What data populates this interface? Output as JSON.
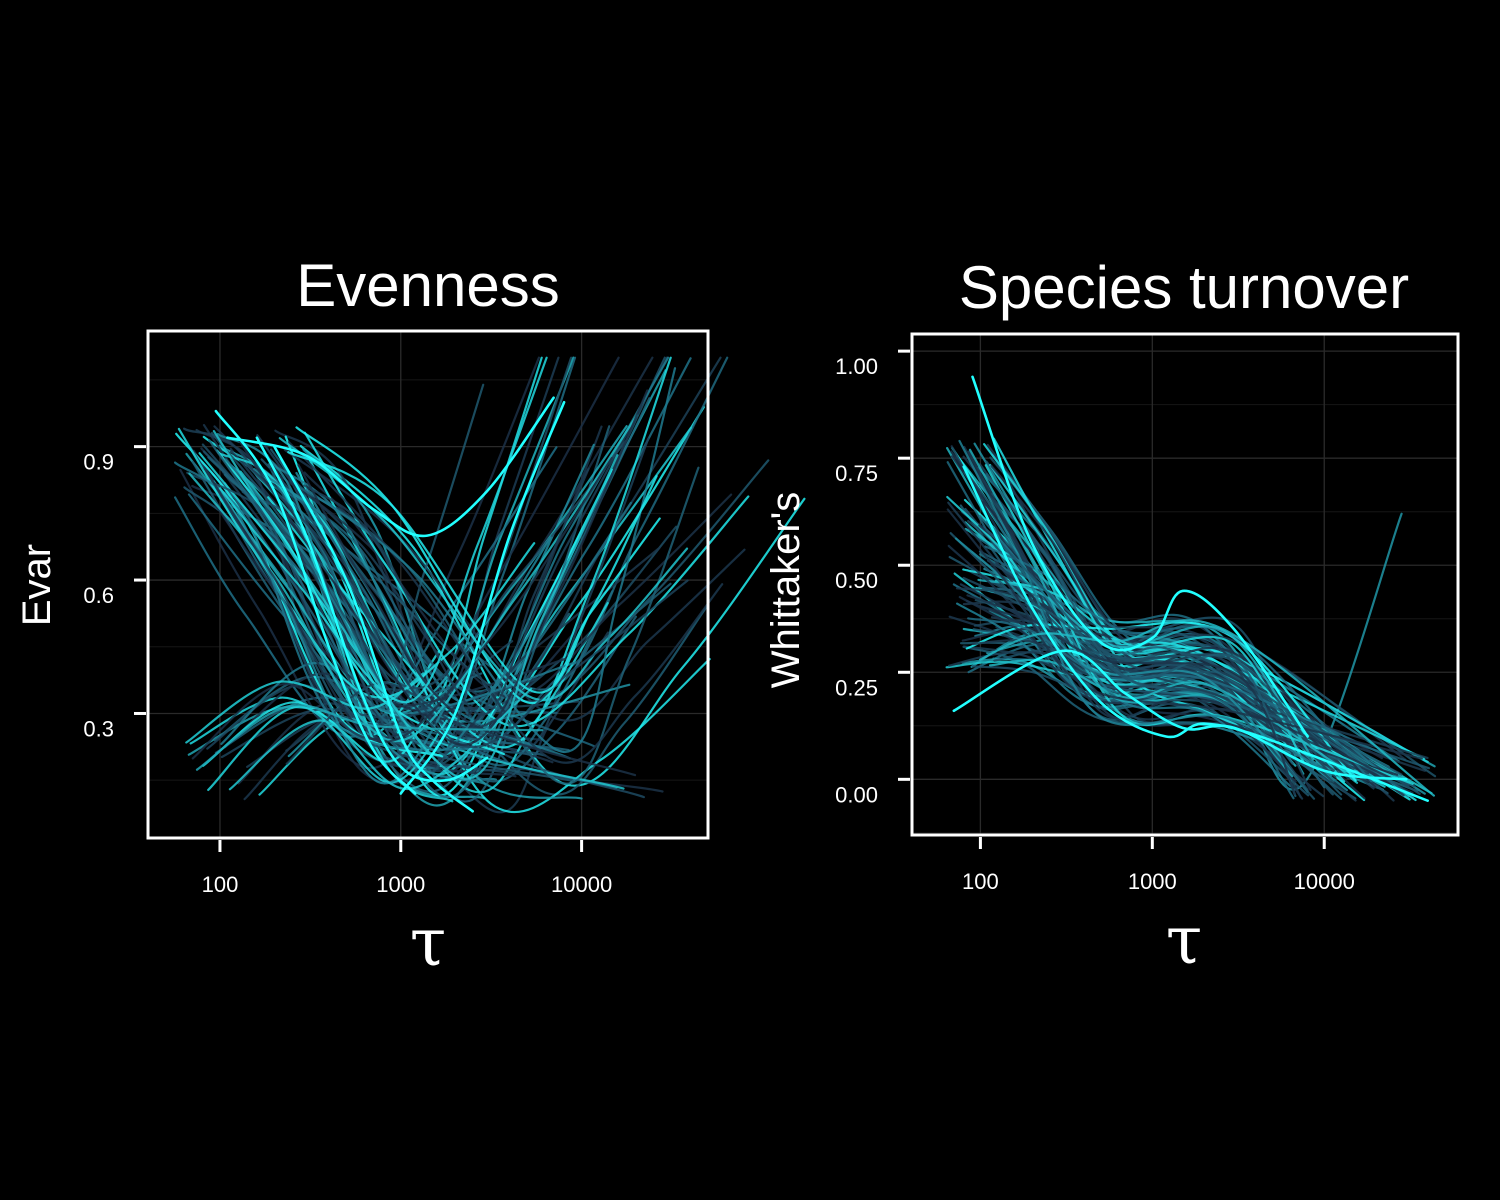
{
  "colors": {
    "background": "#000000",
    "panel_background": "#000000",
    "low": "#1b2f45",
    "mid": "#1f6f86",
    "high": "#22ffff",
    "text": "#ffffff"
  },
  "chart_data": [
    {
      "type": "line",
      "title": "Evenness",
      "xlabel": "τ",
      "ylabel": "Evar",
      "x_scale": "log10",
      "xlim": [
        40,
        50000
      ],
      "ylim": [
        0.02,
        1.16
      ],
      "x_ticks": [
        100,
        1000,
        10000
      ],
      "x_tick_labels": [
        "100",
        "1000",
        "10000"
      ],
      "y_ticks": [
        0.3,
        0.6,
        0.9
      ],
      "y_tick_labels": [
        "0.3",
        "0.6",
        "0.9"
      ],
      "grid": true,
      "legend": "none",
      "series_count": 120,
      "highlighted_series": [
        {
          "x": [
            110,
            300,
            700,
            1400,
            3000,
            7000
          ],
          "y": [
            0.92,
            0.88,
            0.76,
            0.7,
            0.8,
            1.01
          ]
        },
        {
          "x": [
            95,
            200,
            400,
            700,
            1200
          ],
          "y": [
            0.98,
            0.8,
            0.45,
            0.22,
            0.12
          ]
        },
        {
          "x": [
            160,
            300,
            600,
            1000,
            1800,
            3000
          ],
          "y": [
            0.92,
            0.7,
            0.35,
            0.18,
            0.15,
            0.2
          ]
        },
        {
          "x": [
            1000,
            2000,
            4000,
            8000
          ],
          "y": [
            0.12,
            0.3,
            0.7,
            1.0
          ]
        },
        {
          "x": [
            200,
            500,
            1000,
            1500,
            2500
          ],
          "y": [
            0.9,
            0.6,
            0.25,
            0.15,
            0.08
          ]
        }
      ]
    },
    {
      "type": "line",
      "title": "Species turnover",
      "xlabel": "τ",
      "ylabel": "Whittaker's",
      "x_scale": "log10",
      "xlim": [
        40,
        60000
      ],
      "ylim": [
        -0.13,
        1.04
      ],
      "x_ticks": [
        100,
        1000,
        10000
      ],
      "x_tick_labels": [
        "100",
        "1000",
        "10000"
      ],
      "y_ticks": [
        0.0,
        0.25,
        0.5,
        0.75,
        1.0
      ],
      "y_tick_labels": [
        "0.00",
        "0.25",
        "0.50",
        "0.75",
        "1.00"
      ],
      "grid": true,
      "legend": "none",
      "series_count": 110,
      "highlighted_series": [
        {
          "x": [
            90,
            200,
            500,
            1000,
            1500,
            3000,
            8000
          ],
          "y": [
            0.94,
            0.55,
            0.32,
            0.33,
            0.44,
            0.35,
            0.1
          ]
        },
        {
          "x": [
            80,
            200,
            500,
            1200,
            2000,
            5000,
            40000
          ],
          "y": [
            0.73,
            0.4,
            0.18,
            0.1,
            0.13,
            0.09,
            -0.05
          ]
        },
        {
          "x": [
            70,
            300,
            700,
            1500,
            3000,
            10000,
            30000
          ],
          "y": [
            0.16,
            0.3,
            0.2,
            0.12,
            0.12,
            0.02,
            0.0
          ]
        }
      ]
    }
  ]
}
